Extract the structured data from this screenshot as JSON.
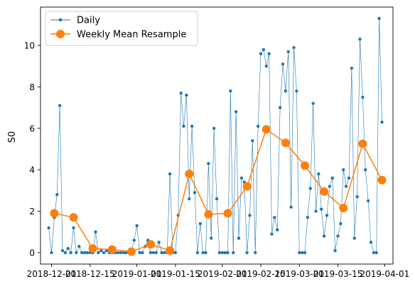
{
  "chart_data": {
    "type": "line",
    "title": "",
    "xlabel": "",
    "ylabel": "S0",
    "x_axis": "date",
    "xlim": [
      "2018-11-27",
      "2019-04-04"
    ],
    "ylim": [
      -0.55,
      11.85
    ],
    "x_ticks": [
      "2018-12-01",
      "2018-12-15",
      "2019-01-01",
      "2019-01-15",
      "2019-02-01",
      "2019-02-15",
      "2019-03-01",
      "2019-03-15",
      "2019-04-01"
    ],
    "y_ticks": [
      0,
      2,
      4,
      6,
      8,
      10
    ],
    "grid": false,
    "legend": "top-left",
    "series": [
      {
        "name": "Daily",
        "color": "#1f77b4",
        "marker": "small-dot",
        "x": [
          "2018-11-30",
          "2018-12-01",
          "2018-12-02",
          "2018-12-03",
          "2018-12-04",
          "2018-12-05",
          "2018-12-06",
          "2018-12-07",
          "2018-12-08",
          "2018-12-09",
          "2018-12-10",
          "2018-12-11",
          "2018-12-12",
          "2018-12-13",
          "2018-12-14",
          "2018-12-15",
          "2018-12-16",
          "2018-12-17",
          "2018-12-18",
          "2018-12-19",
          "2018-12-20",
          "2018-12-21",
          "2018-12-22",
          "2018-12-23",
          "2018-12-24",
          "2018-12-25",
          "2018-12-26",
          "2018-12-27",
          "2018-12-28",
          "2018-12-29",
          "2018-12-30",
          "2018-12-31",
          "2019-01-01",
          "2019-01-02",
          "2019-01-03",
          "2019-01-04",
          "2019-01-05",
          "2019-01-06",
          "2019-01-07",
          "2019-01-08",
          "2019-01-09",
          "2019-01-10",
          "2019-01-11",
          "2019-01-12",
          "2019-01-13",
          "2019-01-14",
          "2019-01-15",
          "2019-01-16",
          "2019-01-17",
          "2019-01-18",
          "2019-01-19",
          "2019-01-20",
          "2019-01-21",
          "2019-01-22",
          "2019-01-23",
          "2019-01-24",
          "2019-01-25",
          "2019-01-26",
          "2019-01-27",
          "2019-01-28",
          "2019-01-29",
          "2019-01-30",
          "2019-01-31",
          "2019-02-01",
          "2019-02-02",
          "2019-02-03",
          "2019-02-04",
          "2019-02-05",
          "2019-02-06",
          "2019-02-07",
          "2019-02-08",
          "2019-02-09",
          "2019-02-10",
          "2019-02-11",
          "2019-02-12",
          "2019-02-13",
          "2019-02-14",
          "2019-02-15",
          "2019-02-16",
          "2019-02-17",
          "2019-02-18",
          "2019-02-19",
          "2019-02-20",
          "2019-02-21",
          "2019-02-22",
          "2019-02-23",
          "2019-02-24",
          "2019-02-25",
          "2019-02-26",
          "2019-02-27",
          "2019-02-28",
          "2019-03-01",
          "2019-03-02",
          "2019-03-03",
          "2019-03-04",
          "2019-03-05",
          "2019-03-06",
          "2019-03-07",
          "2019-03-08",
          "2019-03-09",
          "2019-03-10",
          "2019-03-11",
          "2019-03-12",
          "2019-03-13",
          "2019-03-14",
          "2019-03-15",
          "2019-03-16",
          "2019-03-17",
          "2019-03-18",
          "2019-03-19",
          "2019-03-20",
          "2019-03-21",
          "2019-03-22",
          "2019-03-23",
          "2019-03-24",
          "2019-03-25",
          "2019-03-26",
          "2019-03-27",
          "2019-03-28",
          "2019-03-29",
          "2019-03-30",
          "2019-03-31"
        ],
        "y": [
          1.2,
          0.0,
          1.7,
          2.8,
          7.1,
          0.1,
          0.0,
          0.2,
          0.0,
          1.2,
          0.0,
          0.3,
          0.0,
          0.0,
          0.0,
          0.0,
          0.0,
          1.0,
          0.0,
          0.1,
          0.0,
          0.1,
          0.0,
          0.0,
          0.0,
          0.0,
          0.0,
          0.0,
          0.0,
          0.0,
          0.0,
          0.6,
          1.3,
          0.0,
          0.0,
          0.3,
          0.6,
          0.0,
          0.0,
          0.0,
          0.5,
          0.0,
          0.0,
          0.0,
          3.8,
          0.0,
          0.0,
          1.8,
          7.7,
          6.1,
          7.6,
          2.6,
          6.1,
          2.9,
          0.0,
          1.4,
          0.0,
          0.0,
          4.3,
          0.7,
          6.0,
          2.6,
          0.0,
          0.0,
          0.0,
          0.0,
          7.8,
          0.0,
          6.8,
          0.7,
          3.6,
          3.4,
          0.0,
          1.8,
          5.4,
          0.0,
          6.1,
          9.6,
          9.8,
          9.0,
          9.6,
          0.9,
          1.7,
          1.1,
          7.0,
          9.1,
          7.8,
          9.7,
          2.2,
          9.9,
          7.8,
          0.0,
          0.0,
          0.0,
          1.7,
          3.1,
          7.2,
          2.0,
          3.8,
          2.1,
          0.8,
          1.8,
          3.2,
          3.6,
          0.1,
          0.8,
          1.4,
          4.0,
          3.2,
          3.6,
          8.9,
          0.7,
          2.7,
          10.3,
          7.5,
          4.0,
          2.5,
          0.5,
          0.0,
          0.0,
          11.3,
          6.3
        ]
      },
      {
        "name": "Weekly Mean Resample",
        "color": "#ff7f0e",
        "marker": "large-dot",
        "x": [
          "2018-12-02",
          "2018-12-09",
          "2018-12-16",
          "2018-12-23",
          "2018-12-30",
          "2019-01-06",
          "2019-01-13",
          "2019-01-20",
          "2019-01-27",
          "2019-02-03",
          "2019-02-10",
          "2019-02-17",
          "2019-02-24",
          "2019-03-03",
          "2019-03-10",
          "2019-03-17",
          "2019-03-24",
          "2019-03-31"
        ],
        "y": [
          1.9,
          1.7,
          0.2,
          0.15,
          0.05,
          0.4,
          0.1,
          3.8,
          1.85,
          1.9,
          3.2,
          5.95,
          5.3,
          4.2,
          2.95,
          2.15,
          5.25,
          3.5
        ]
      }
    ]
  }
}
